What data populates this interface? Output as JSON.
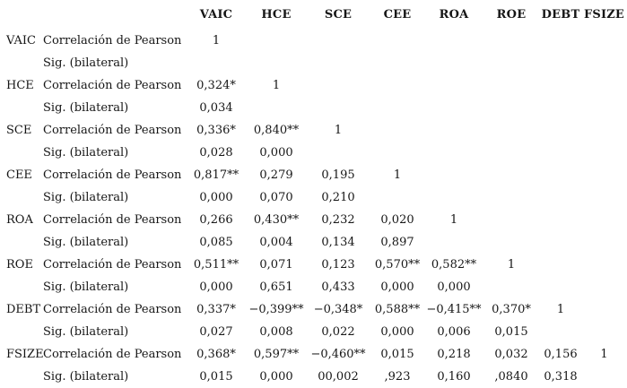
{
  "table": {
    "header": [
      "VAIC",
      "HCE",
      "SCE",
      "CEE",
      "ROA",
      "ROE",
      "DEBT",
      "FSIZE"
    ],
    "row_labels": {
      "pearson": "Correlación de Pearson",
      "sig": "Sig. (bilateral)"
    },
    "variables": [
      {
        "name": "VAIC",
        "pearson": [
          "1",
          "",
          "",
          "",
          "",
          "",
          "",
          ""
        ],
        "sig": [
          "",
          "",
          "",
          "",
          "",
          "",
          "",
          ""
        ]
      },
      {
        "name": "HCE",
        "pearson": [
          "0,324*",
          "1",
          "",
          "",
          "",
          "",
          "",
          ""
        ],
        "sig": [
          "0,034",
          "",
          "",
          "",
          "",
          "",
          "",
          ""
        ]
      },
      {
        "name": "SCE",
        "pearson": [
          "0,336*",
          "0,840**",
          "1",
          "",
          "",
          "",
          "",
          ""
        ],
        "sig": [
          "0,028",
          "0,000",
          "",
          "",
          "",
          "",
          "",
          ""
        ]
      },
      {
        "name": "CEE",
        "pearson": [
          "0,817**",
          "0,279",
          "0,195",
          "1",
          "",
          "",
          "",
          ""
        ],
        "sig": [
          "0,000",
          "0,070",
          "0,210",
          "",
          "",
          "",
          "",
          ""
        ]
      },
      {
        "name": "ROA",
        "pearson": [
          "0,266",
          "0,430**",
          "0,232",
          "0,020",
          "1",
          "",
          "",
          ""
        ],
        "sig": [
          "0,085",
          "0,004",
          "0,134",
          "0,897",
          "",
          "",
          "",
          ""
        ]
      },
      {
        "name": "ROE",
        "pearson": [
          "0,511**",
          "0,071",
          "0,123",
          "0,570**",
          "0,582**",
          "1",
          "",
          ""
        ],
        "sig": [
          "0,000",
          "0,651",
          "0,433",
          "0,000",
          "0,000",
          "",
          "",
          ""
        ]
      },
      {
        "name": "DEBT",
        "pearson": [
          "0,337*",
          "−0,399**",
          "−0,348*",
          "0,588**",
          "−0,415**",
          "0,370*",
          "1",
          ""
        ],
        "sig": [
          "0,027",
          "0,008",
          "0,022",
          "0,000",
          "0,006",
          "0,015",
          "",
          ""
        ]
      },
      {
        "name": "FSIZE",
        "pearson": [
          "0,368*",
          "0,597**",
          "−0,460**",
          "0,015",
          "0,218",
          "0,032",
          "0,156",
          "1"
        ],
        "sig": [
          "0,015",
          "0,000",
          "00,002",
          ",923",
          "0,160",
          ",0840",
          "0,318",
          ""
        ]
      }
    ]
  }
}
